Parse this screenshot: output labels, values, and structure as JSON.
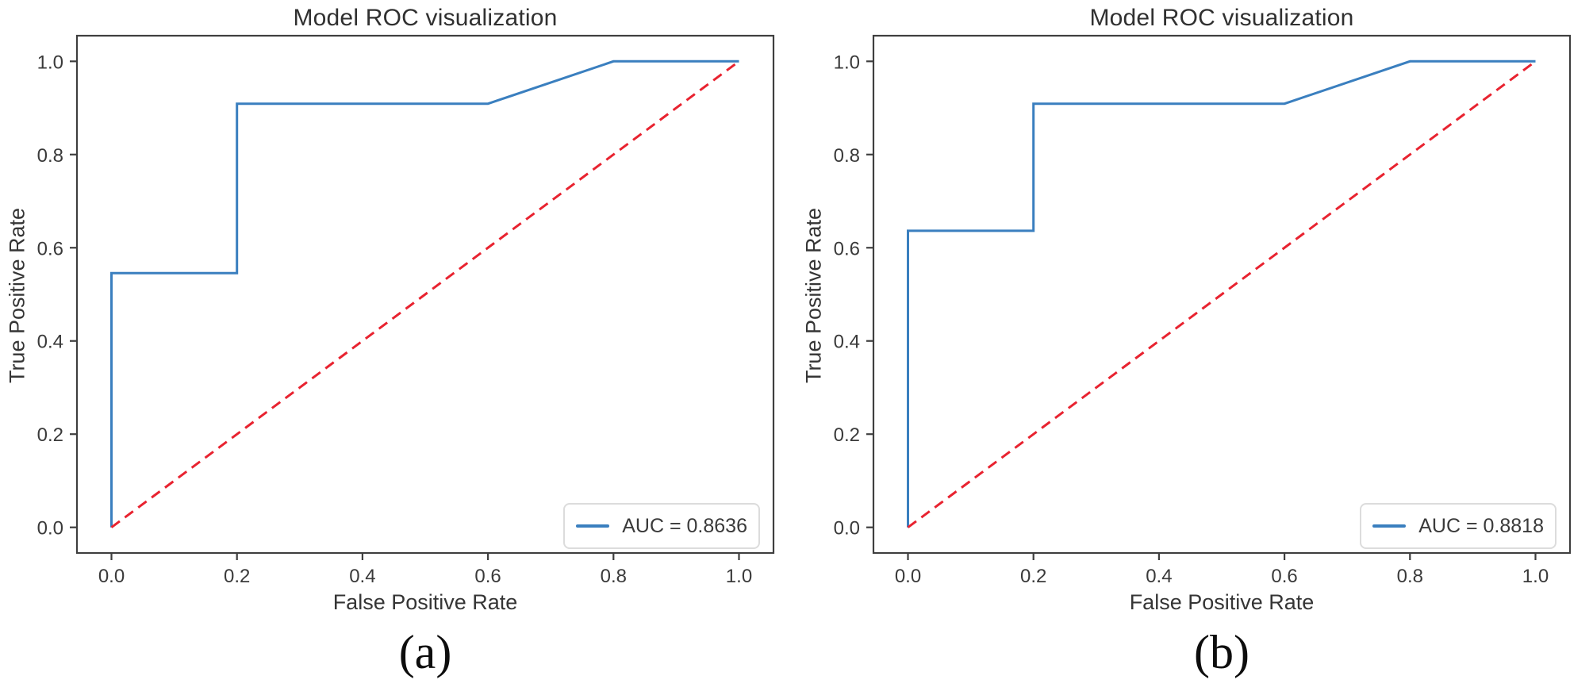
{
  "page": {
    "background": "#ffffff"
  },
  "colors": {
    "roc_line": "#3a7fbf",
    "diagonal": "#e82330",
    "axis": "#3f3f3f",
    "tick_text": "#3a3a3a",
    "legend_border": "#dcdcdc"
  },
  "chart_data": [
    {
      "type": "line",
      "title": "Model ROC visualization",
      "xlabel": "False Positive Rate",
      "ylabel": "True Positive Rate",
      "caption": "(a)",
      "xlim": [
        -0.055,
        1.055
      ],
      "ylim": [
        -0.055,
        1.055
      ],
      "xticks": [
        0.0,
        0.2,
        0.4,
        0.6,
        0.8,
        1.0
      ],
      "yticks": [
        0.0,
        0.2,
        0.4,
        0.6,
        0.8,
        1.0
      ],
      "grid": false,
      "auc": 0.8636,
      "legend": {
        "position": "lower right",
        "label": "AUC = 0.8636"
      },
      "series": [
        {
          "name": "roc-curve",
          "color": "#3a7fbf",
          "line_style": "solid",
          "x": [
            0,
            0,
            0.2,
            0.2,
            0.6,
            0.8,
            1.0
          ],
          "y": [
            0,
            0.5455,
            0.5455,
            0.9091,
            0.9091,
            1.0,
            1.0
          ]
        },
        {
          "name": "chance-diagonal",
          "color": "#e82330",
          "line_style": "dashed",
          "x": [
            0,
            1.0
          ],
          "y": [
            0,
            1.0
          ]
        }
      ]
    },
    {
      "type": "line",
      "title": "Model ROC visualization",
      "xlabel": "False Positive Rate",
      "ylabel": "True Positive Rate",
      "caption": "(b)",
      "xlim": [
        -0.055,
        1.055
      ],
      "ylim": [
        -0.055,
        1.055
      ],
      "xticks": [
        0.0,
        0.2,
        0.4,
        0.6,
        0.8,
        1.0
      ],
      "yticks": [
        0.0,
        0.2,
        0.4,
        0.6,
        0.8,
        1.0
      ],
      "grid": false,
      "auc": 0.8818,
      "legend": {
        "position": "lower right",
        "label": "AUC = 0.8818"
      },
      "series": [
        {
          "name": "roc-curve",
          "color": "#3a7fbf",
          "line_style": "solid",
          "x": [
            0,
            0,
            0.2,
            0.2,
            0.6,
            0.8,
            1.0
          ],
          "y": [
            0,
            0.6364,
            0.6364,
            0.9091,
            0.9091,
            1.0,
            1.0
          ]
        },
        {
          "name": "chance-diagonal",
          "color": "#e82330",
          "line_style": "dashed",
          "x": [
            0,
            1.0
          ],
          "y": [
            0,
            1.0
          ]
        }
      ]
    }
  ]
}
